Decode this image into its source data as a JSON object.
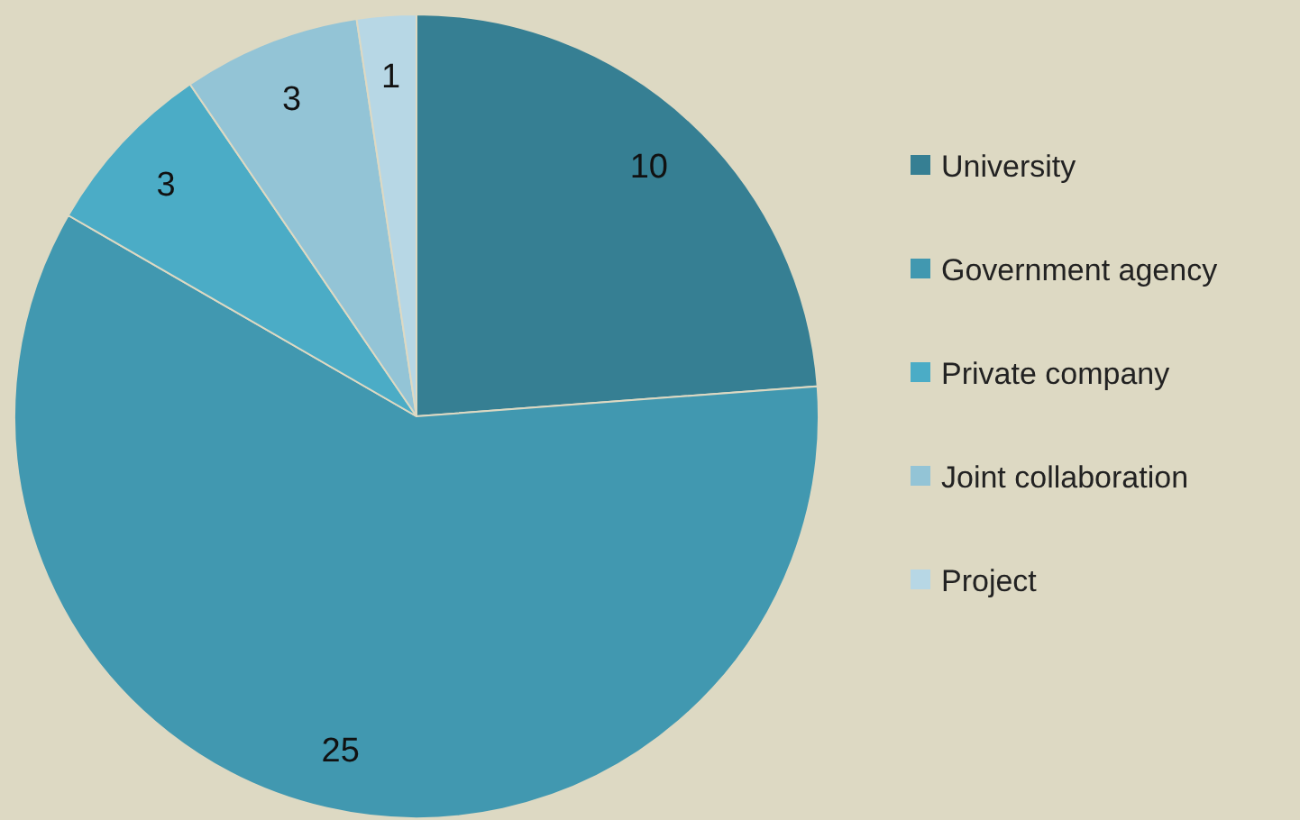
{
  "chart_data": {
    "type": "pie",
    "categories": [
      "University",
      "Government agency",
      "Private company",
      "Joint collaboration",
      "Project"
    ],
    "values": [
      10,
      25,
      3,
      3,
      1
    ],
    "colors": [
      "#367f93",
      "#4198b0",
      "#4bacc6",
      "#93c4d6",
      "#b7d7e5"
    ],
    "data_labels": true,
    "legend": "right"
  }
}
